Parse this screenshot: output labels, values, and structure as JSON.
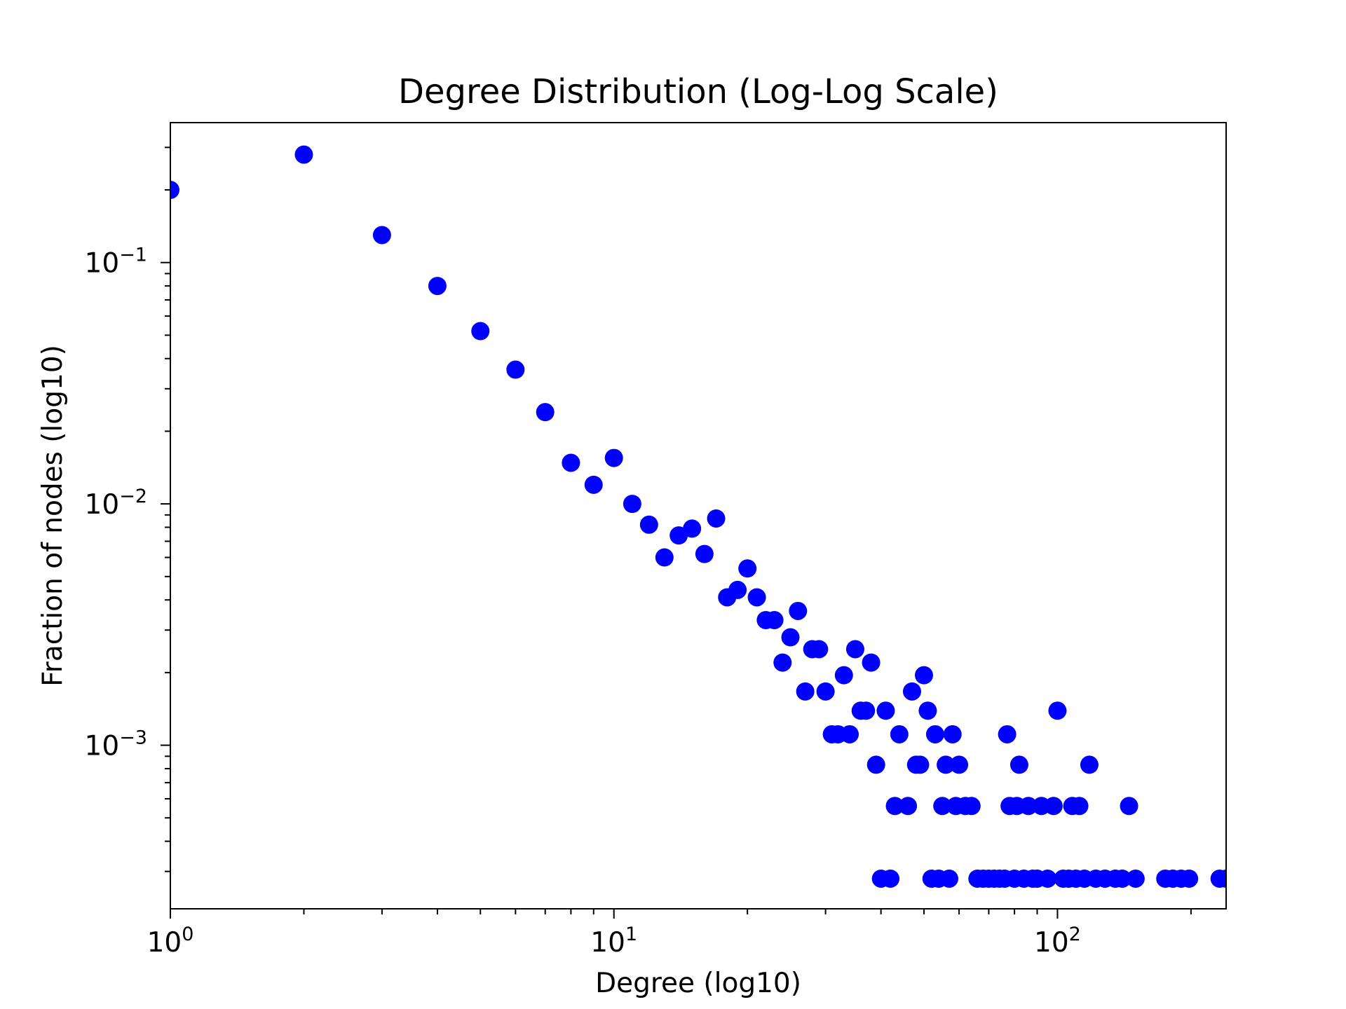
{
  "chart_data": {
    "type": "scatter",
    "title": "Degree Distribution (Log-Log Scale)",
    "xlabel": "Degree (log10)",
    "ylabel": "Fraction of nodes (log10)",
    "xscale": "log",
    "yscale": "log",
    "xlim": [
      1,
      240
    ],
    "ylim": [
      0.00021,
      0.38
    ],
    "x_ticks": [
      {
        "base": "10",
        "exp": "0"
      },
      {
        "base": "10",
        "exp": "1"
      },
      {
        "base": "10",
        "exp": "2"
      }
    ],
    "y_ticks": [
      {
        "base": "10",
        "exp": "−1"
      },
      {
        "base": "10",
        "exp": "−2"
      },
      {
        "base": "10",
        "exp": "−3"
      }
    ],
    "grid": false,
    "legend": "none",
    "marker_color": "#0000ff",
    "series": [
      {
        "x": [
          1,
          2,
          3,
          4,
          5,
          6,
          7,
          8,
          9,
          10,
          11,
          12,
          13,
          14,
          15,
          16,
          17,
          18,
          19,
          20,
          21,
          22,
          23,
          24,
          25,
          26,
          27,
          28,
          29,
          30,
          31,
          32,
          33,
          34,
          35,
          36,
          37,
          38,
          39,
          40,
          41,
          42,
          43,
          44,
          46,
          47,
          48,
          49,
          50,
          51,
          52,
          53,
          54,
          55,
          56,
          57,
          58,
          59,
          60,
          62,
          64,
          66,
          68,
          70,
          72,
          74,
          76,
          77,
          78,
          80,
          81,
          82,
          84,
          86,
          88,
          90,
          92,
          95,
          98,
          100,
          103,
          106,
          108,
          110,
          112,
          115,
          118,
          122,
          128,
          135,
          140,
          145,
          150,
          175,
          182,
          190,
          198,
          232,
          240
        ],
        "y": [
          0.2,
          0.28,
          0.13,
          0.08,
          0.052,
          0.036,
          0.024,
          0.0148,
          0.012,
          0.0155,
          0.01,
          0.0082,
          0.006,
          0.0074,
          0.0079,
          0.0062,
          0.0087,
          0.0041,
          0.0044,
          0.0054,
          0.0041,
          0.0033,
          0.0033,
          0.0022,
          0.0028,
          0.0036,
          0.00167,
          0.0025,
          0.0025,
          0.00167,
          0.00111,
          0.00111,
          0.00195,
          0.00111,
          0.0025,
          0.00139,
          0.00139,
          0.0022,
          0.00083,
          0.00028,
          0.00139,
          0.00028,
          0.00056,
          0.00111,
          0.00056,
          0.00167,
          0.00083,
          0.00083,
          0.00195,
          0.00139,
          0.00028,
          0.00111,
          0.00028,
          0.00056,
          0.00083,
          0.00028,
          0.00111,
          0.00056,
          0.00083,
          0.00056,
          0.00056,
          0.00028,
          0.00028,
          0.00028,
          0.00028,
          0.00028,
          0.00028,
          0.00111,
          0.00056,
          0.00028,
          0.00056,
          0.00083,
          0.00028,
          0.00056,
          0.00028,
          0.00028,
          0.00056,
          0.00028,
          0.00056,
          0.00139,
          0.00028,
          0.00028,
          0.00056,
          0.00028,
          0.00056,
          0.00028,
          0.00083,
          0.00028,
          0.00028,
          0.00028,
          0.00028,
          0.00056,
          0.00028,
          0.00028,
          0.00028,
          0.00028,
          0.00028,
          0.00028,
          0.00028
        ]
      }
    ]
  }
}
